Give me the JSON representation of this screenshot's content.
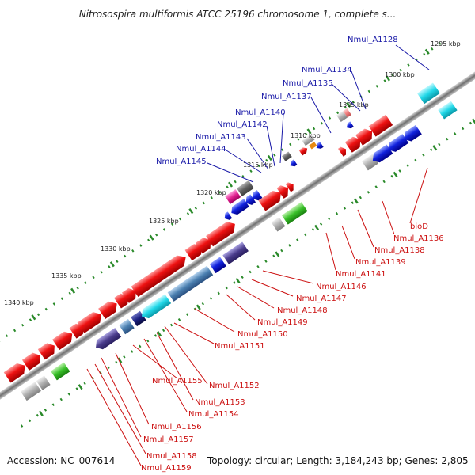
{
  "title": "Nitrosospira multiformis ATCC 25196 chromosome 1, complete s...",
  "footer": {
    "accession": "Accession: NC_007614",
    "topology": "Topology: circular; Length: 3,184,243 bp; Genes: 2,805"
  },
  "kbp_labels": [
    "1295 kbp",
    "1300 kbp",
    "1305 kbp",
    "1310 kbp",
    "1315 kbp",
    "1320 kbp",
    "1325 kbp",
    "1330 kbp",
    "1335 kbp",
    "1340 kbp"
  ],
  "upper_gene_labels": [
    "Nmul_A1128",
    "Nmul_A1134",
    "Nmul_A1135",
    "Nmul_A1137",
    "Nmul_A1140",
    "Nmul_A1142",
    "Nmul_A1143",
    "Nmul_A1144",
    "Nmul_A1145"
  ],
  "lower_gene_labels": [
    "bioD",
    "Nmul_A1136",
    "Nmul_A1138",
    "Nmul_A1139",
    "Nmul_A1141",
    "Nmul_A1146",
    "Nmul_A1147",
    "Nmul_A1148",
    "Nmul_A1149",
    "Nmul_A1150",
    "Nmul_A1151",
    "Nmul_A1152",
    "Nmul_A1153",
    "Nmul_A1154",
    "Nmul_A1155",
    "Nmul_A1156",
    "Nmul_A1157",
    "Nmul_A1158",
    "Nmul_A1159"
  ],
  "colors": {
    "backbone": "#808080",
    "forward_cds": "#ee1111",
    "reverse_cds": "#1122dd",
    "tick": "#2a8a2a",
    "label_blue": "#1a1aa8",
    "label_red": "#cc1111"
  }
}
